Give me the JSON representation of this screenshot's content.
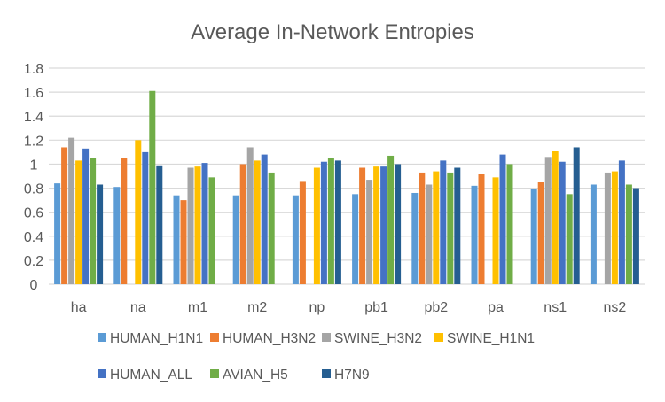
{
  "chart_data": {
    "type": "bar",
    "title": "Average In-Network Entropies",
    "xlabel": "",
    "ylabel": "",
    "ylim": [
      0,
      1.8
    ],
    "yticks": [
      "0",
      "0.2",
      "0.4",
      "0.6",
      "0.8",
      "1",
      "1.2",
      "1.4",
      "1.6",
      "1.8"
    ],
    "grid": true,
    "legend_position": "bottom",
    "categories": [
      "ha",
      "na",
      "m1",
      "m2",
      "np",
      "pb1",
      "pb2",
      "pa",
      "ns1",
      "ns2"
    ],
    "series": [
      {
        "name": "HUMAN_H1N1",
        "color": "#5B9BD5",
        "values": [
          0.84,
          0.81,
          0.74,
          0.74,
          0.74,
          0.75,
          0.76,
          0.82,
          0.79,
          0.83
        ]
      },
      {
        "name": "HUMAN_H3N2",
        "color": "#ED7D31",
        "values": [
          1.14,
          1.05,
          0.7,
          1.0,
          0.86,
          0.97,
          0.93,
          0.92,
          0.85,
          null
        ]
      },
      {
        "name": "SWINE_H3N2",
        "color": "#A5A5A5",
        "values": [
          1.22,
          null,
          0.97,
          1.14,
          null,
          0.87,
          0.83,
          null,
          1.06,
          0.93
        ]
      },
      {
        "name": "SWINE_H1N1",
        "color": "#FFC000",
        "values": [
          1.03,
          1.2,
          0.98,
          1.03,
          0.97,
          0.98,
          0.94,
          0.89,
          1.11,
          0.94
        ]
      },
      {
        "name": "HUMAN_ALL",
        "color": "#4472C4",
        "values": [
          1.13,
          1.1,
          1.01,
          1.08,
          1.02,
          0.98,
          1.03,
          1.08,
          1.02,
          1.03
        ]
      },
      {
        "name": "AVIAN_H5",
        "color": "#70AD47",
        "values": [
          1.05,
          1.61,
          0.89,
          0.93,
          1.05,
          1.07,
          0.93,
          1.0,
          0.75,
          0.83
        ]
      },
      {
        "name": "H7N9",
        "color": "#255E91",
        "values": [
          0.83,
          0.99,
          null,
          null,
          1.03,
          1.0,
          0.97,
          null,
          1.14,
          0.8
        ]
      }
    ]
  }
}
